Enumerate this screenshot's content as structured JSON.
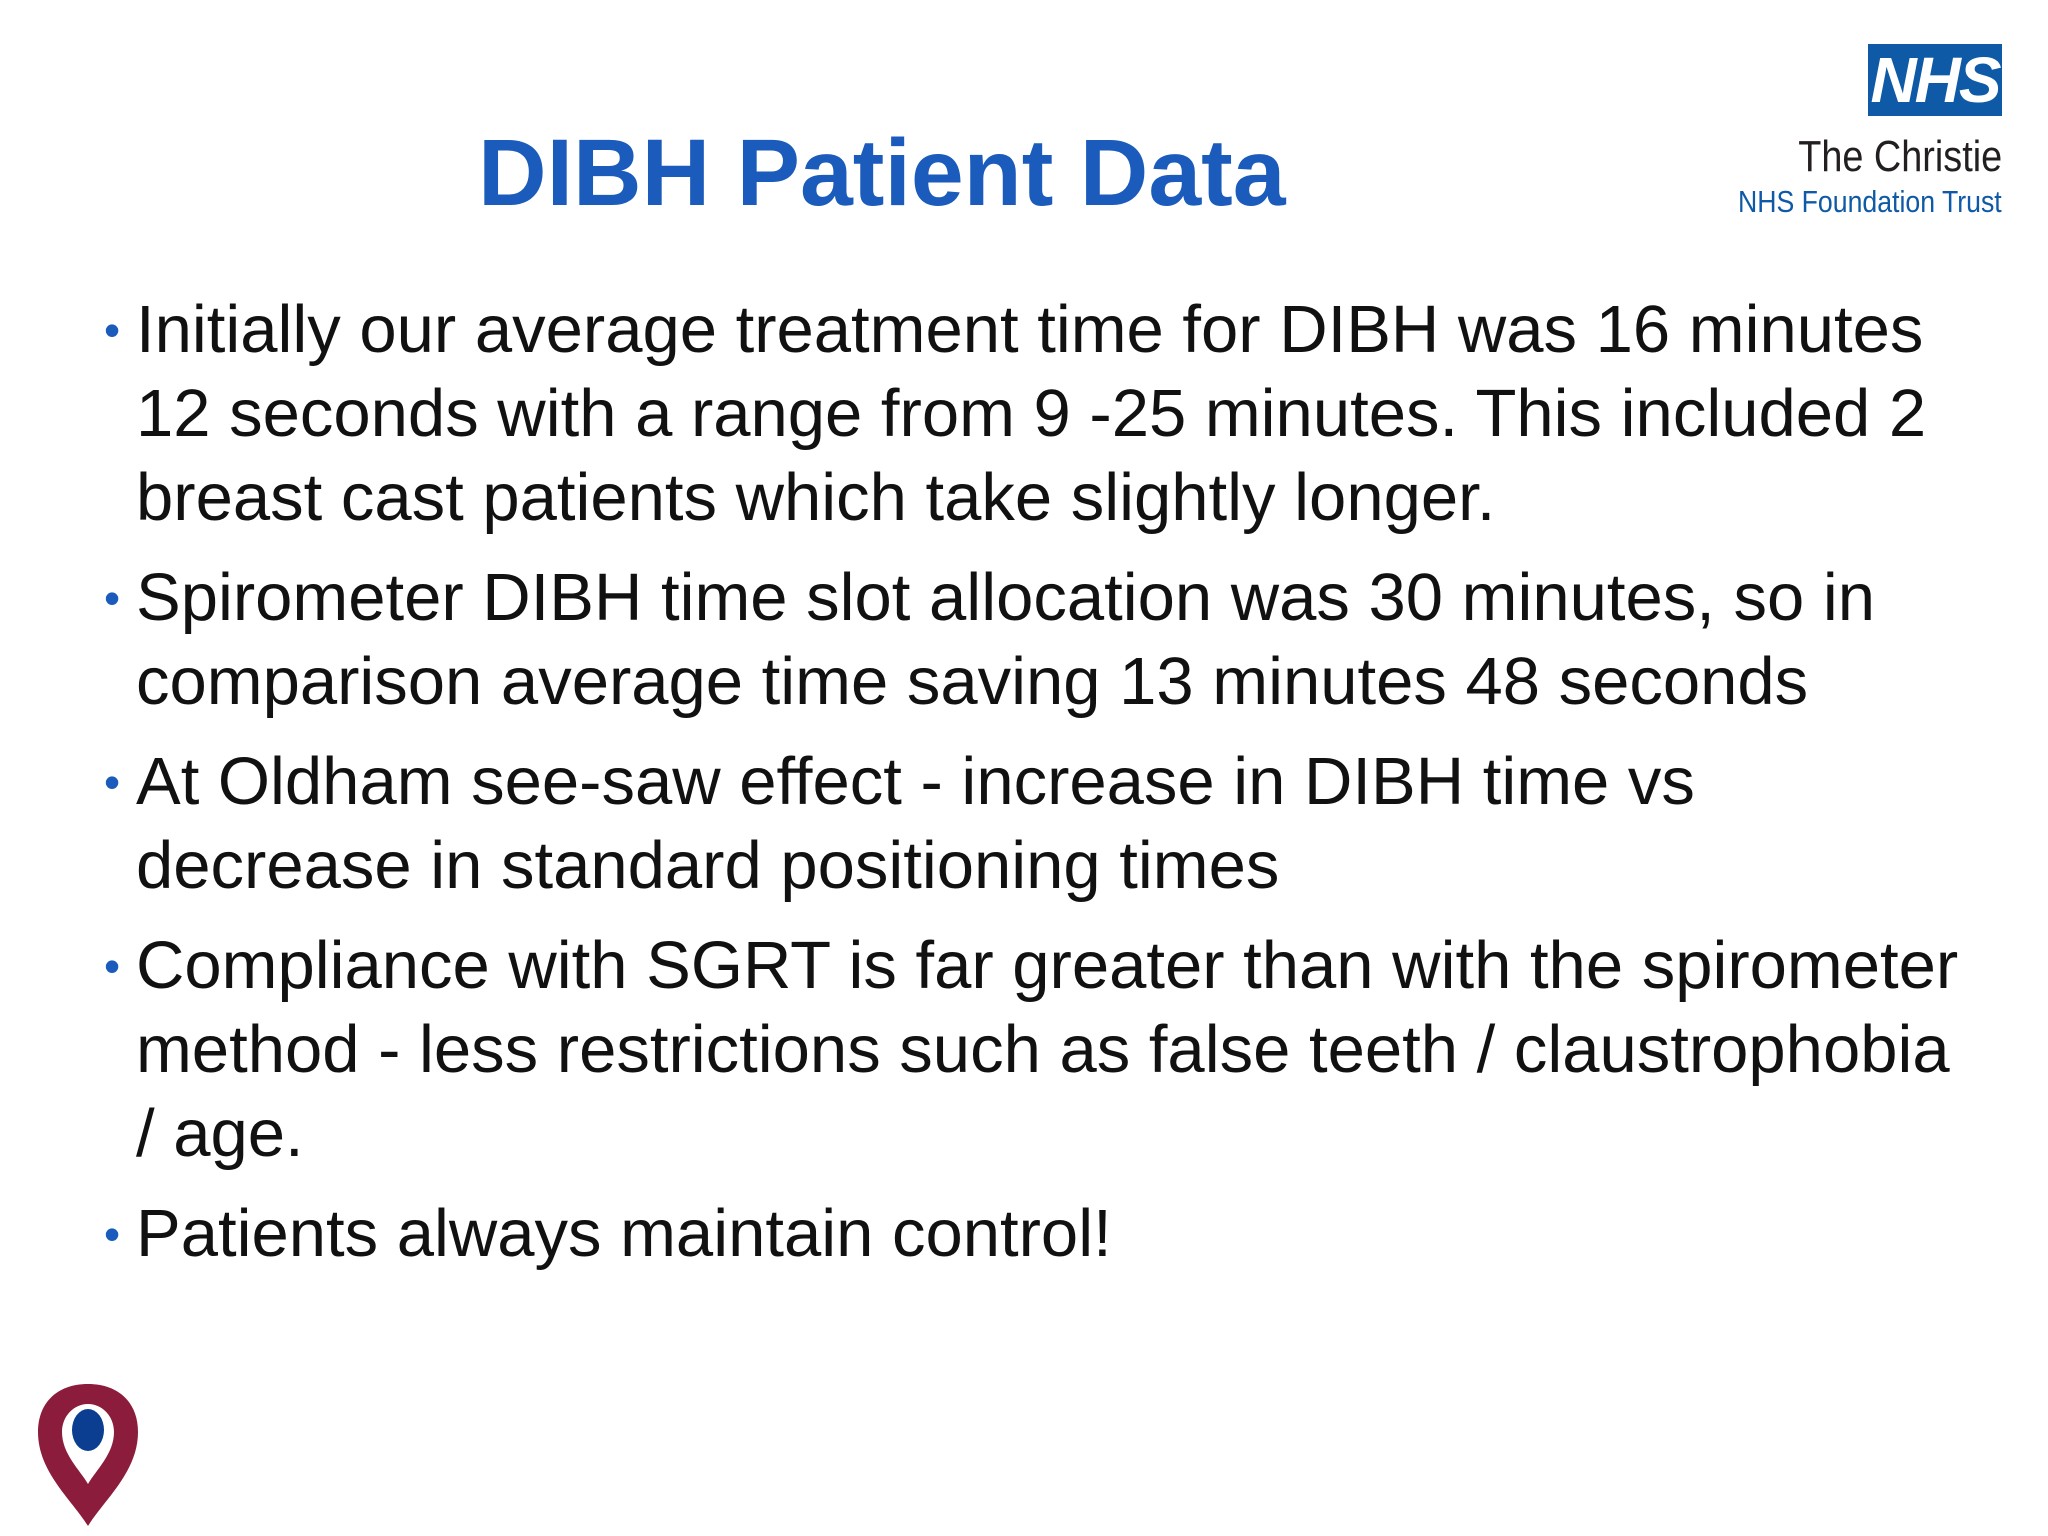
{
  "slide": {
    "title": "DIBH Patient Data"
  },
  "logo": {
    "nhs_mark": "NHS",
    "organisation": "The Christie",
    "subtitle": "NHS Foundation Trust",
    "colors": {
      "nhs_blue": "#0f5aa6",
      "text_dark": "#231f20"
    }
  },
  "colors": {
    "title": "#1a5bbb",
    "bullet": "#1a5bbb",
    "body_text": "#111111",
    "footer_logo_maroon": "#8c1c3c",
    "footer_logo_blue": "#0b3d91"
  },
  "bullets": [
    {
      "marker": "•",
      "text": "Initially our average treatment time for DIBH was 16 minutes 12 seconds with a range from 9 -25 minutes. This included 2 breast cast patients which take slightly longer."
    },
    {
      "marker": "•",
      "text": "Spirometer DIBH time slot allocation was 30 minutes, so in comparison average time saving 13 minutes 48 seconds"
    },
    {
      "marker": "•",
      "text": "At Oldham see-saw effect - increase in DIBH time vs decrease in standard positioning times"
    },
    {
      "marker": "•",
      "text": "Compliance with SGRT is far greater than with the spirometer method - less restrictions such as false teeth / claustrophobia / age."
    },
    {
      "marker": "•",
      "text": "Patients always maintain control!"
    }
  ],
  "footer": {
    "icon": "location-pin-logo-icon"
  }
}
